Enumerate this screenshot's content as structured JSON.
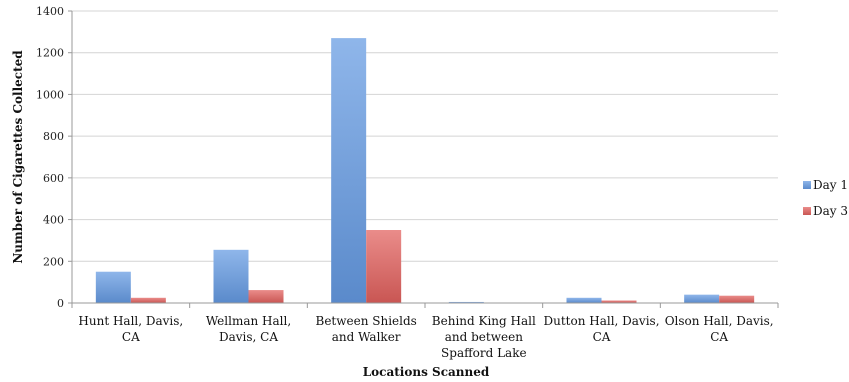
{
  "chart_data": {
    "type": "bar",
    "title": "",
    "xlabel": "Locations Scanned",
    "ylabel": "Number of Cigarettes Collected",
    "ylim": [
      0,
      1400
    ],
    "yticks": [
      0,
      200,
      400,
      600,
      800,
      1000,
      1200,
      1400
    ],
    "grid": true,
    "legend_position": "right",
    "categories": [
      [
        "Hunt Hall, Davis,",
        "CA"
      ],
      [
        "Wellman Hall,",
        "Davis, CA"
      ],
      [
        "Between Shields",
        "and Walker"
      ],
      [
        "Behind King Hall",
        "and between",
        "Spafford Lake"
      ],
      [
        "Dutton Hall, Davis,",
        "CA"
      ],
      [
        "Olson Hall, Davis,",
        "CA"
      ]
    ],
    "series": [
      {
        "name": "Day 1",
        "color": "#6f9fdc",
        "values": [
          150,
          255,
          1270,
          5,
          25,
          40
        ]
      },
      {
        "name": "Day 3",
        "color": "#dc6d6b",
        "values": [
          25,
          62,
          350,
          0,
          12,
          35
        ]
      }
    ]
  }
}
